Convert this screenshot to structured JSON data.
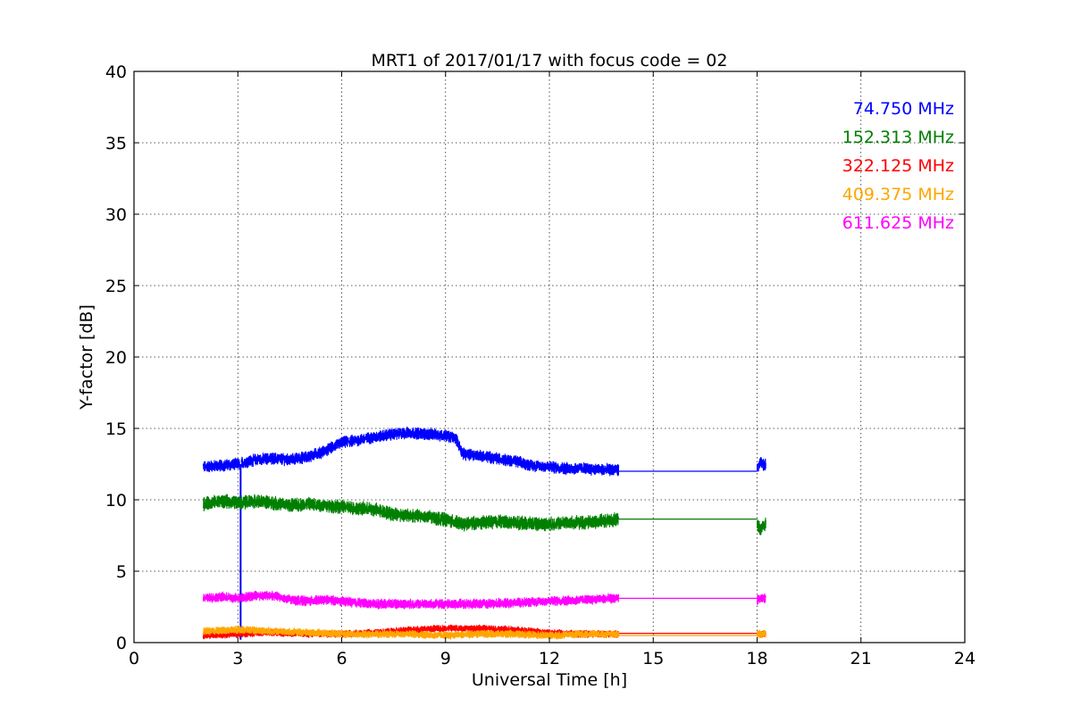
{
  "chart_data": {
    "type": "line",
    "title": "MRT1 of 2017/01/17 with focus code = 02",
    "xlabel": "Universal Time [h]",
    "ylabel": "Y-factor [dB]",
    "xlim": [
      0,
      24
    ],
    "ylim": [
      0,
      40
    ],
    "xticks": [
      0,
      3,
      6,
      9,
      12,
      15,
      18,
      21,
      24
    ],
    "yticks": [
      0,
      5,
      10,
      15,
      20,
      25,
      30,
      35,
      40
    ],
    "grid": true,
    "legend_position": "top-right",
    "series": [
      {
        "name": "74.750 MHz",
        "color": "#0000ff",
        "noise": 0.35,
        "segments": [
          {
            "x": [
              2.0,
              2.5,
              3.0,
              3.05
            ],
            "y": [
              12.3,
              12.4,
              12.5,
              12.5
            ]
          },
          {
            "x": [
              3.1,
              3.5,
              4.0,
              4.5,
              5.0,
              5.5,
              6.0,
              6.5,
              7.0,
              7.5,
              8.0,
              8.5,
              9.0,
              9.3,
              9.5,
              10.0,
              10.5,
              11.0,
              11.5,
              12.0,
              12.5,
              13.0,
              13.5,
              14.0
            ],
            "y": [
              12.6,
              12.8,
              12.9,
              12.8,
              13.0,
              13.4,
              14.0,
              14.2,
              14.4,
              14.6,
              14.7,
              14.6,
              14.5,
              14.3,
              13.2,
              13.1,
              12.9,
              12.7,
              12.4,
              12.3,
              12.2,
              12.2,
              12.1,
              12.1
            ]
          },
          {
            "x": [
              14.0,
              18.0
            ],
            "y": [
              12.0,
              12.0
            ],
            "flat": true
          },
          {
            "x": [
              18.0,
              18.1,
              18.2,
              18.25
            ],
            "y": [
              12.1,
              12.6,
              12.4,
              12.5
            ]
          }
        ],
        "spike": {
          "x": 3.08,
          "from": 0.2,
          "to": 12.5
        }
      },
      {
        "name": "152.313 MHz",
        "color": "#008000",
        "noise": 0.4,
        "segments": [
          {
            "x": [
              2.0,
              2.5,
              3.0,
              3.5,
              4.0,
              4.5,
              5.0,
              5.5,
              6.0,
              6.5,
              7.0,
              7.5,
              8.0,
              8.5,
              9.0,
              9.5,
              10.0,
              10.5,
              11.0,
              11.5,
              12.0,
              12.5,
              13.0,
              13.5,
              14.0
            ],
            "y": [
              9.7,
              9.9,
              9.8,
              9.9,
              9.8,
              9.6,
              9.7,
              9.6,
              9.5,
              9.4,
              9.3,
              9.0,
              8.9,
              8.8,
              8.6,
              8.3,
              8.4,
              8.5,
              8.4,
              8.3,
              8.3,
              8.4,
              8.4,
              8.5,
              8.6
            ]
          },
          {
            "x": [
              14.0,
              18.0
            ],
            "y": [
              8.65,
              8.65
            ],
            "flat": true
          },
          {
            "x": [
              18.0,
              18.1,
              18.2,
              18.25
            ],
            "y": [
              8.3,
              7.9,
              8.1,
              8.4
            ]
          }
        ]
      },
      {
        "name": "322.125 MHz",
        "color": "#ff0000",
        "noise": 0.2,
        "segments": [
          {
            "x": [
              2.0,
              3.0,
              4.0,
              5.0,
              6.0,
              7.0,
              8.0,
              9.0,
              10.0,
              11.0,
              12.0,
              13.0,
              14.0
            ],
            "y": [
              0.5,
              0.6,
              0.7,
              0.6,
              0.6,
              0.7,
              0.9,
              1.0,
              1.0,
              0.9,
              0.7,
              0.6,
              0.6
            ]
          },
          {
            "x": [
              14.0,
              18.0
            ],
            "y": [
              0.65,
              0.65
            ],
            "flat": true
          },
          {
            "x": [
              18.0,
              18.25
            ],
            "y": [
              0.6,
              0.6
            ]
          }
        ]
      },
      {
        "name": "409.375 MHz",
        "color": "#ffa500",
        "noise": 0.22,
        "segments": [
          {
            "x": [
              2.0,
              3.0,
              4.0,
              5.0,
              6.0,
              7.0,
              8.0,
              9.0,
              10.0,
              11.0,
              12.0,
              13.0,
              14.0
            ],
            "y": [
              0.8,
              0.9,
              0.8,
              0.7,
              0.6,
              0.6,
              0.6,
              0.5,
              0.6,
              0.6,
              0.5,
              0.6,
              0.6
            ]
          },
          {
            "x": [
              14.0,
              18.0
            ],
            "y": [
              0.5,
              0.5
            ],
            "flat": true
          },
          {
            "x": [
              18.0,
              18.25
            ],
            "y": [
              0.6,
              0.6
            ]
          }
        ]
      },
      {
        "name": "611.625 MHz",
        "color": "#ff00ff",
        "noise": 0.28,
        "segments": [
          {
            "x": [
              2.0,
              2.5,
              3.0,
              3.5,
              4.0,
              4.5,
              5.0,
              5.5,
              6.0,
              6.5,
              7.0,
              8.0,
              9.0,
              10.0,
              11.0,
              12.0,
              13.0,
              14.0
            ],
            "y": [
              3.1,
              3.2,
              3.1,
              3.3,
              3.3,
              3.0,
              2.9,
              3.0,
              2.9,
              2.8,
              2.7,
              2.7,
              2.7,
              2.7,
              2.8,
              2.9,
              3.0,
              3.1
            ]
          },
          {
            "x": [
              14.0,
              18.0
            ],
            "y": [
              3.1,
              3.1
            ],
            "flat": true
          },
          {
            "x": [
              18.0,
              18.25
            ],
            "y": [
              3.0,
              3.1
            ]
          }
        ]
      }
    ]
  }
}
